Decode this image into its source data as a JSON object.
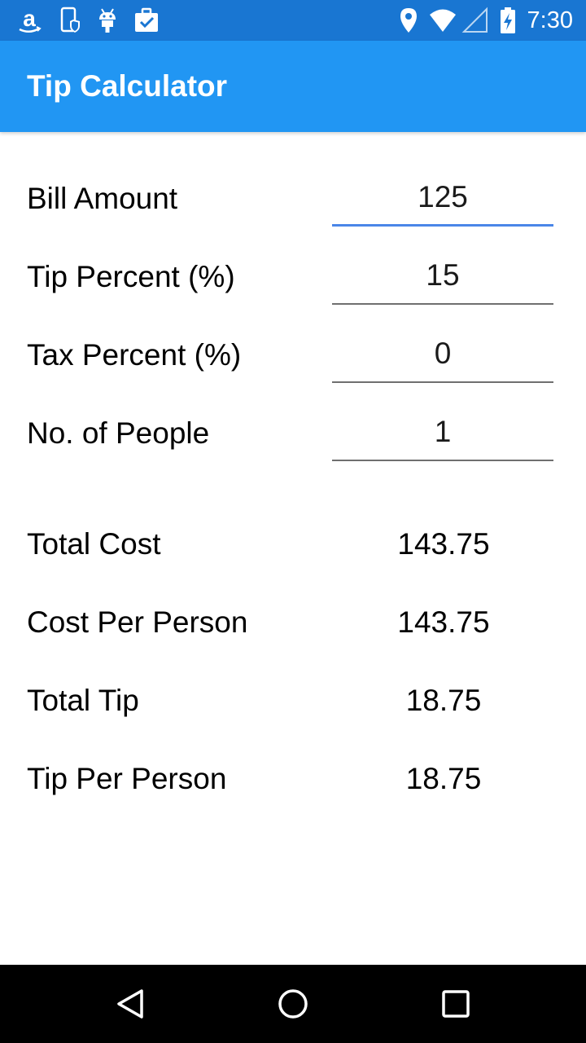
{
  "status_bar": {
    "time": "7:30",
    "icons_left": [
      "amazon-icon",
      "phone-shield-icon",
      "android-icon",
      "briefcase-check-icon"
    ],
    "icons_right": [
      "location-pin-icon",
      "wifi-icon",
      "cellular-signal-icon",
      "battery-charging-icon"
    ]
  },
  "app_bar": {
    "title": "Tip Calculator"
  },
  "inputs": [
    {
      "label": "Bill Amount",
      "value": "125"
    },
    {
      "label": "Tip Percent (%)",
      "value": "15"
    },
    {
      "label": "Tax Percent (%)",
      "value": "0"
    },
    {
      "label": "No. of People",
      "value": "1"
    }
  ],
  "results": [
    {
      "label": "Total Cost",
      "value": "143.75"
    },
    {
      "label": "Cost Per Person",
      "value": "143.75"
    },
    {
      "label": "Total Tip",
      "value": "18.75"
    },
    {
      "label": "Tip Per Person",
      "value": "18.75"
    }
  ],
  "nav_bar": {
    "buttons": [
      "back-icon",
      "home-icon",
      "recents-icon"
    ]
  },
  "colors": {
    "status_bar": "#1976d2",
    "app_bar": "#2196f3",
    "focus_underline": "#4a86e8"
  }
}
